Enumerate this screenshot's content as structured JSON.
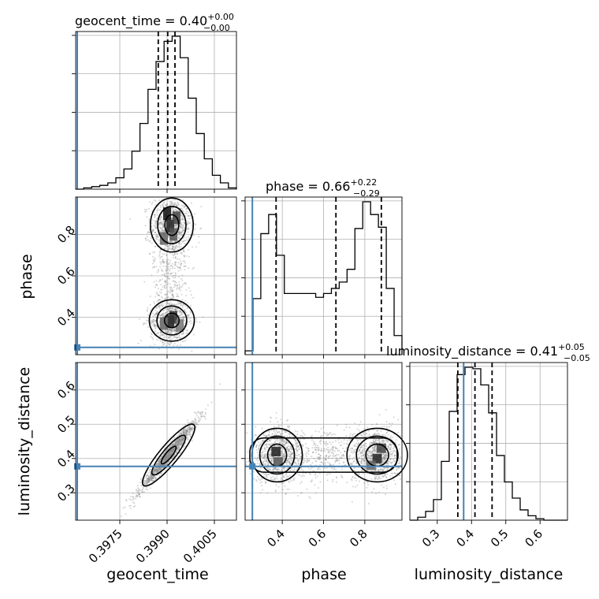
{
  "chart_data": {
    "type": "corner",
    "parameters": [
      "geocent_time",
      "phase",
      "luminosity_distance"
    ],
    "ranges": {
      "geocent_time": [
        0.3961,
        0.4012
      ],
      "phase": [
        0.22,
        0.98
      ],
      "luminosity_distance": [
        0.22,
        0.68
      ]
    },
    "titles": [
      {
        "param": "geocent_time",
        "text": "geocent_time = 0.40",
        "sup": "+0.00",
        "sub": "−0.00"
      },
      {
        "param": "phase",
        "text": "phase = 0.66",
        "sup": "+0.22",
        "sub": "−0.29"
      },
      {
        "param": "luminosity_distance",
        "text": "luminosity_distance = 0.41",
        "sup": "+0.05",
        "sub": "−0.05"
      }
    ],
    "axis_labels": {
      "geocent_time": "geocent_time",
      "phase": "phase",
      "luminosity_distance": "luminosity_distance"
    },
    "ticks": {
      "geocent_time": {
        "values": [
          0.3975,
          0.399,
          0.4005
        ],
        "labels": [
          "0.3975",
          "0.3990",
          "0.4005"
        ]
      },
      "phase": {
        "values": [
          0.4,
          0.6,
          0.8
        ],
        "labels": [
          "0.4",
          "0.6",
          "0.8"
        ]
      },
      "luminosity_distance": {
        "values": [
          0.3,
          0.4,
          0.5,
          0.6
        ],
        "labels": [
          "0.3",
          "0.4",
          "0.5",
          "0.6"
        ]
      }
    },
    "truth": {
      "geocent_time": 0.39615,
      "phase": 0.255,
      "luminosity_distance": 0.377
    },
    "quantiles": {
      "geocent_time": [
        0.39872,
        0.39902,
        0.39925
      ],
      "phase": [
        0.37,
        0.66,
        0.88
      ],
      "luminosity_distance": [
        0.36,
        0.41,
        0.46
      ]
    },
    "histograms": {
      "geocent_time": {
        "range": [
          0.3961,
          0.4012
        ],
        "counts": [
          0,
          1,
          2,
          3,
          5,
          9,
          16,
          30,
          52,
          79,
          101,
          117,
          121,
          104,
          72,
          44,
          24,
          11,
          5,
          1
        ]
      },
      "phase": {
        "range": [
          0.22,
          0.98
        ],
        "counts": [
          3,
          44,
          95,
          110,
          78,
          48,
          48,
          48,
          48,
          45,
          48,
          52,
          57,
          67,
          99,
          120,
          110,
          100,
          52,
          15
        ]
      },
      "luminosity_distance": {
        "range": [
          0.22,
          0.68
        ],
        "counts": [
          0,
          2,
          6,
          14,
          40,
          74,
          99,
          104,
          103,
          92,
          73,
          44,
          26,
          15,
          7,
          3,
          1,
          0,
          0,
          0
        ]
      }
    },
    "grid": true
  }
}
